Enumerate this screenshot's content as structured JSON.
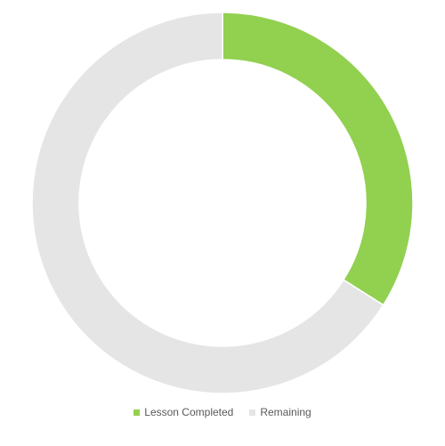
{
  "chart_data": {
    "type": "pie",
    "variant": "donut",
    "title": "",
    "categories": [
      "Lesson Completed",
      "Remaining"
    ],
    "values": [
      34,
      66
    ],
    "colors": [
      "#92D050",
      "#E5E5E5"
    ],
    "legend_position": "bottom",
    "start_angle_deg": 0,
    "direction": "clockwise"
  }
}
